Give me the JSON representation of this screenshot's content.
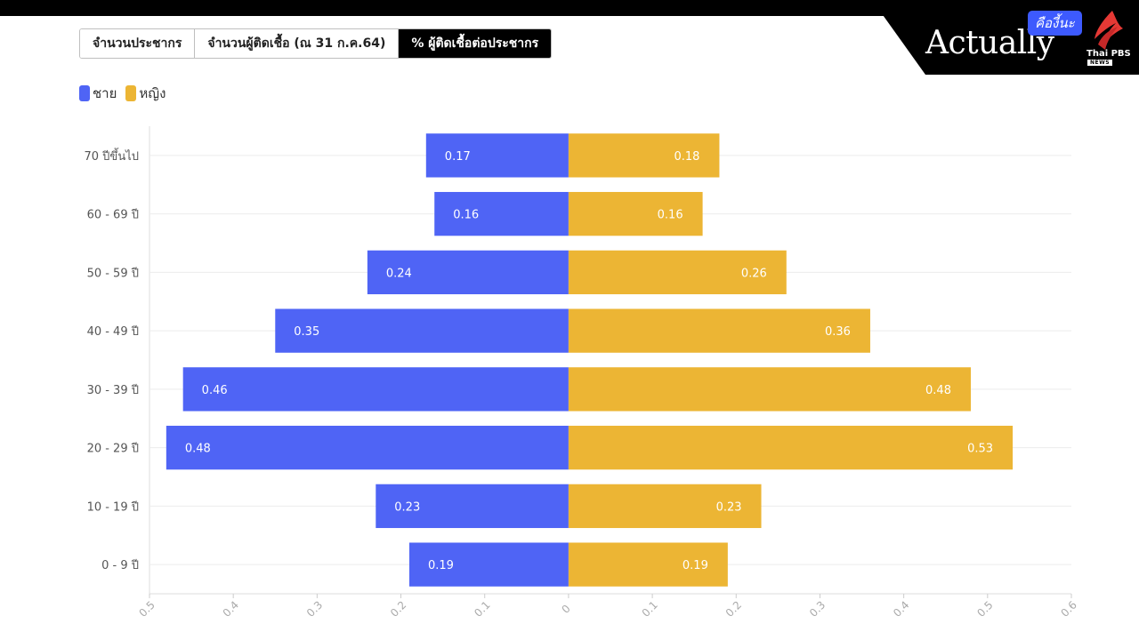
{
  "brand": {
    "name": "Actually",
    "tagline": "คืองี้นะ",
    "network": "Thai PBS",
    "network_sub": "NEWS"
  },
  "tabs": [
    {
      "label": "จำนวนประชากร",
      "active": false
    },
    {
      "label": "จำนวนผู้ติดเชื้อ (ณ 31 ก.ค.64)",
      "active": false
    },
    {
      "label": "% ผู้ติดเชื้อต่อประชากร",
      "active": true
    }
  ],
  "colors": {
    "male": "#4f64f5",
    "female": "#ecb534"
  },
  "chart_data": {
    "type": "bar",
    "orientation": "horizontal-diverging",
    "categories": [
      "70 ปีขึ้นไป",
      "60 - 69 ปี",
      "50 - 59 ปี",
      "40 - 49 ปี",
      "30 - 39 ปี",
      "20 - 29 ปี",
      "10 - 19 ปี",
      "0 - 9 ปี"
    ],
    "series": [
      {
        "name": "ชาย",
        "values": [
          0.17,
          0.16,
          0.24,
          0.35,
          0.46,
          0.48,
          0.23,
          0.19
        ]
      },
      {
        "name": "หญิง",
        "values": [
          0.18,
          0.16,
          0.26,
          0.36,
          0.48,
          0.53,
          0.23,
          0.19
        ]
      }
    ],
    "x_ticks": [
      "0.5",
      "0.4",
      "0.3",
      "0.2",
      "0.1",
      "0",
      "0.1",
      "0.2",
      "0.3",
      "0.4",
      "0.5",
      "0.6"
    ],
    "xlim_left": 0.5,
    "xlim_right": 0.6,
    "grid": true,
    "legend": "top-left"
  }
}
